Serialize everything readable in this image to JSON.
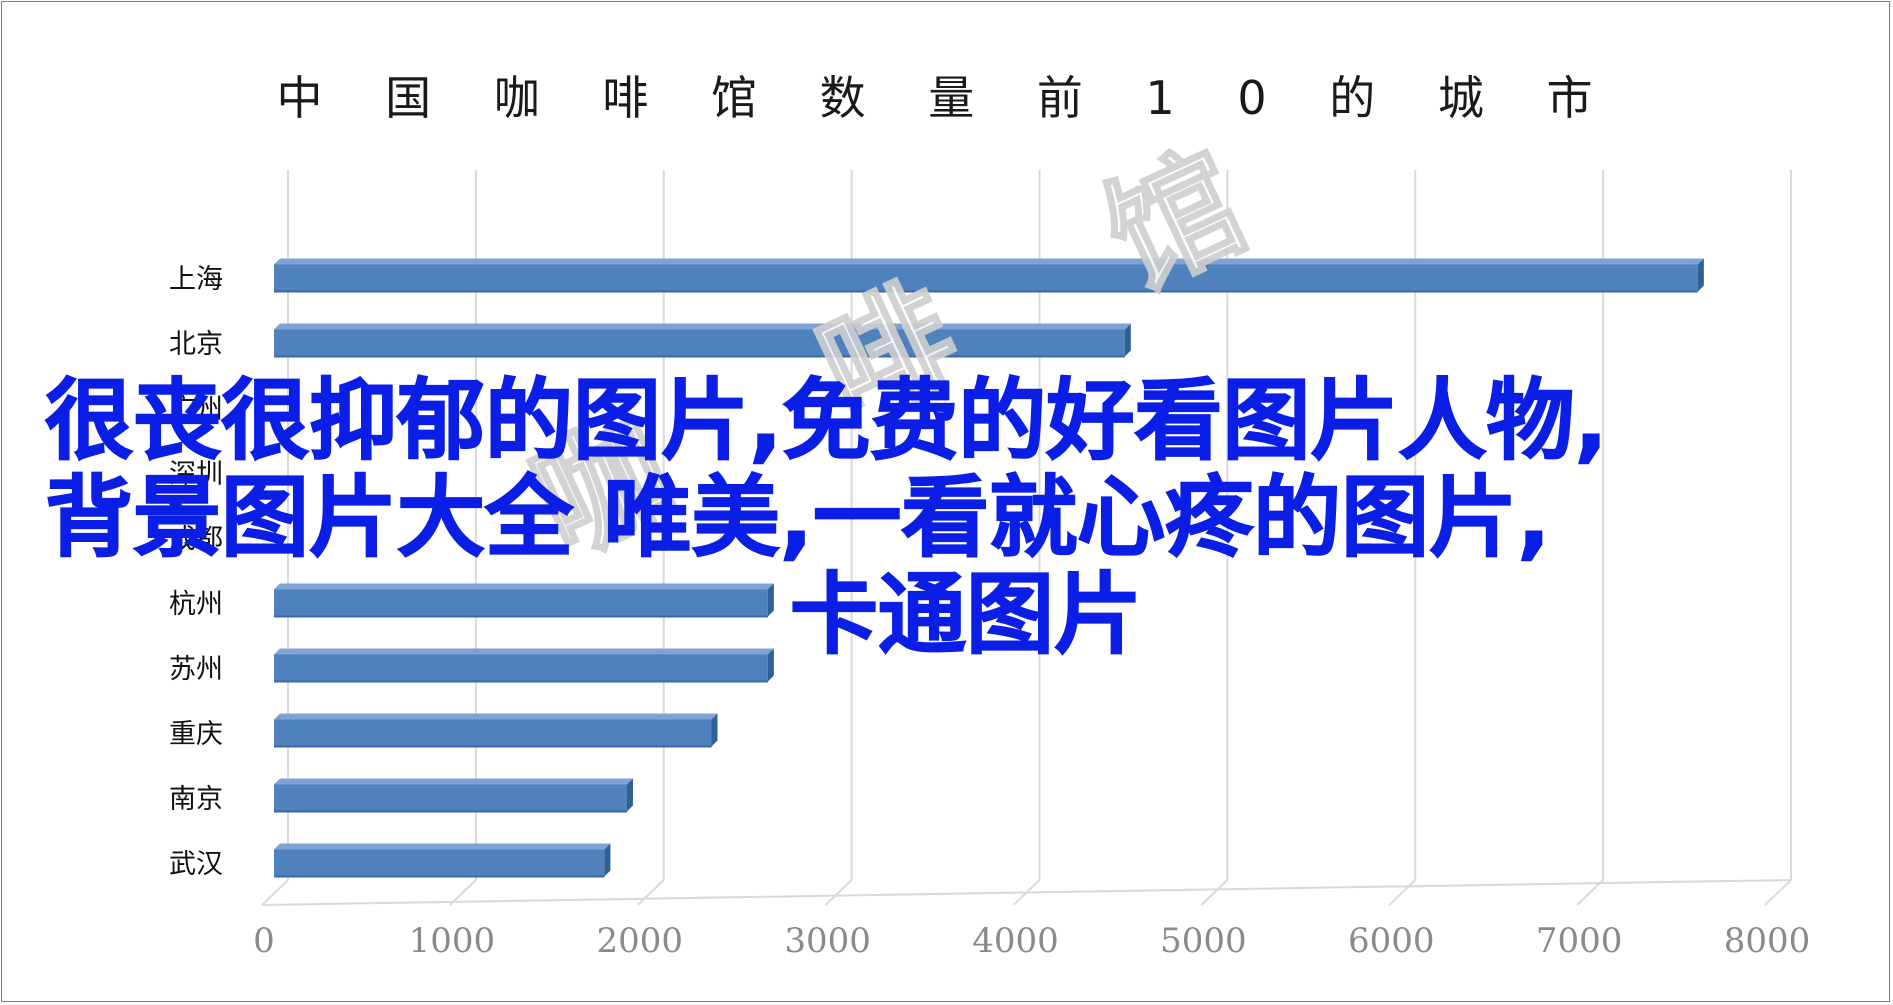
{
  "chart_data": {
    "type": "bar",
    "orientation": "horizontal",
    "title": "中 国 咖 啡 馆 数 量 前 1 0  的 城 市",
    "categories": [
      "上海",
      "北京",
      "广州",
      "深圳",
      "成都",
      "杭州",
      "苏州",
      "重庆",
      "南京",
      "武汉"
    ],
    "values": [
      7600,
      4550,
      null,
      null,
      null,
      2650,
      2650,
      2350,
      1900,
      1780
    ],
    "xlim": [
      0,
      8000
    ],
    "xticks": [
      "0",
      "1000",
      "2000",
      "3000",
      "4000",
      "5000",
      "6000",
      "7000",
      "8000"
    ],
    "grid": true,
    "legend": "none",
    "bar_color": "#4f81bd",
    "bar_edge_color": "#2f5f95"
  },
  "overlay": {
    "caption_lines": [
      "很丧很抑郁的图片,免费的好看图片人物,",
      "背景图片大全 唯美,一看就心疼的图片,",
      "卡通图片"
    ],
    "caption_color": "#0b1ee6",
    "watermark": "咖 啡 馆"
  }
}
